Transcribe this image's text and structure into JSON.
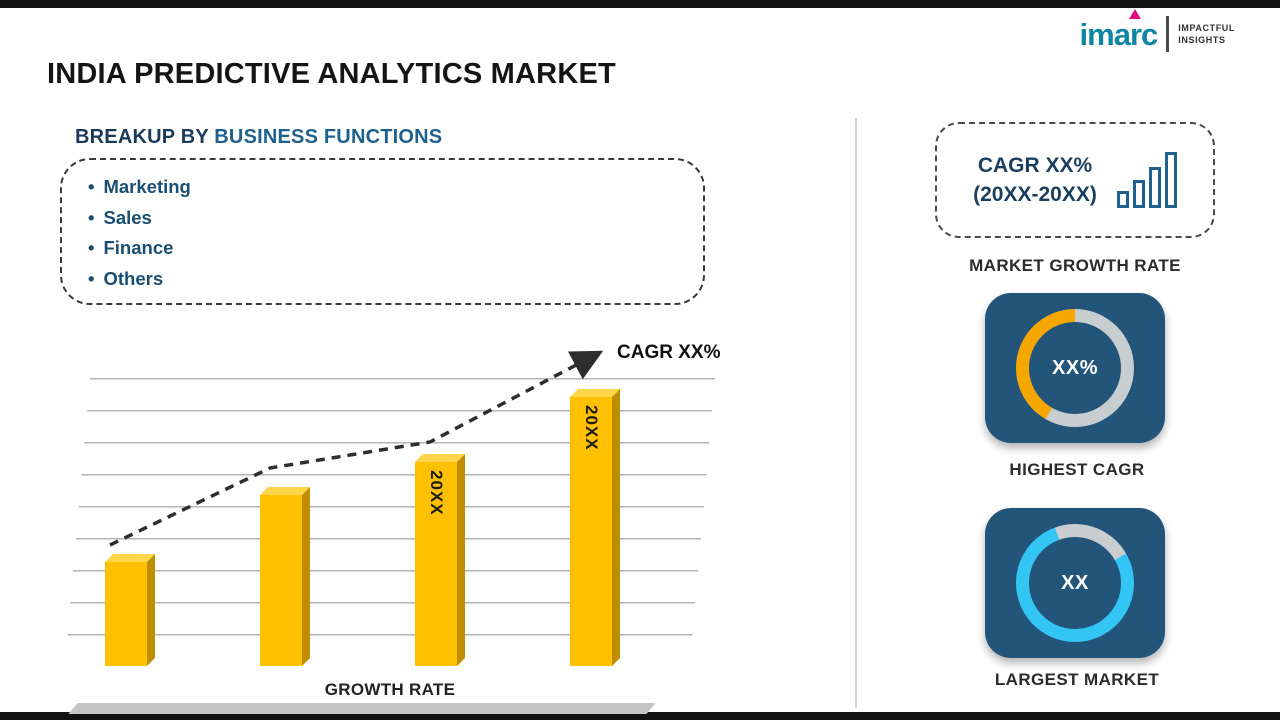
{
  "logo": {
    "brand": "imarc",
    "tagline1": "IMPACTFUL",
    "tagline2": "INSIGHTS"
  },
  "title": "INDIA PREDICTIVE ANALYTICS MARKET",
  "breakup": {
    "heading_prefix": "BREAKUP BY ",
    "heading_main": "BUSINESS FUNCTIONS",
    "bullet": "•",
    "items": [
      "Marketing",
      "Sales",
      "Finance",
      "Others"
    ]
  },
  "right_panel": {
    "cagr_box_line1": "CAGR XX%",
    "cagr_box_line2": "(20XX-20XX)",
    "market_growth_label": "MARKET GROWTH RATE",
    "highest_cagr_value": "XX%",
    "highest_cagr_label": "HIGHEST CAGR",
    "largest_market_value": "XX",
    "largest_market_label": "LARGEST MARKET"
  },
  "colors": {
    "bar_yellow": "#FFC000",
    "accent_blue": "#1F618D",
    "tile_blue": "#23547A",
    "donut_orange": "#F5A700",
    "donut_cyan": "#33C5F3",
    "donut_gray": "#C8CDD0",
    "logo_teal": "#0E86A0",
    "logo_magenta": "#E5097F"
  },
  "chart_data": {
    "type": "bar",
    "title": "",
    "categories": [
      "",
      "",
      "20XX",
      "20XX"
    ],
    "values": [
      37,
      61,
      73,
      96
    ],
    "ylim": [
      0,
      100
    ],
    "xlabel": "GROWTH RATE",
    "ylabel": "",
    "annotation": "CAGR XX%",
    "trend_line": "dashed ascending arrow over bars",
    "gridlines": true,
    "legend": "none",
    "bar_color": "#FFC000"
  }
}
